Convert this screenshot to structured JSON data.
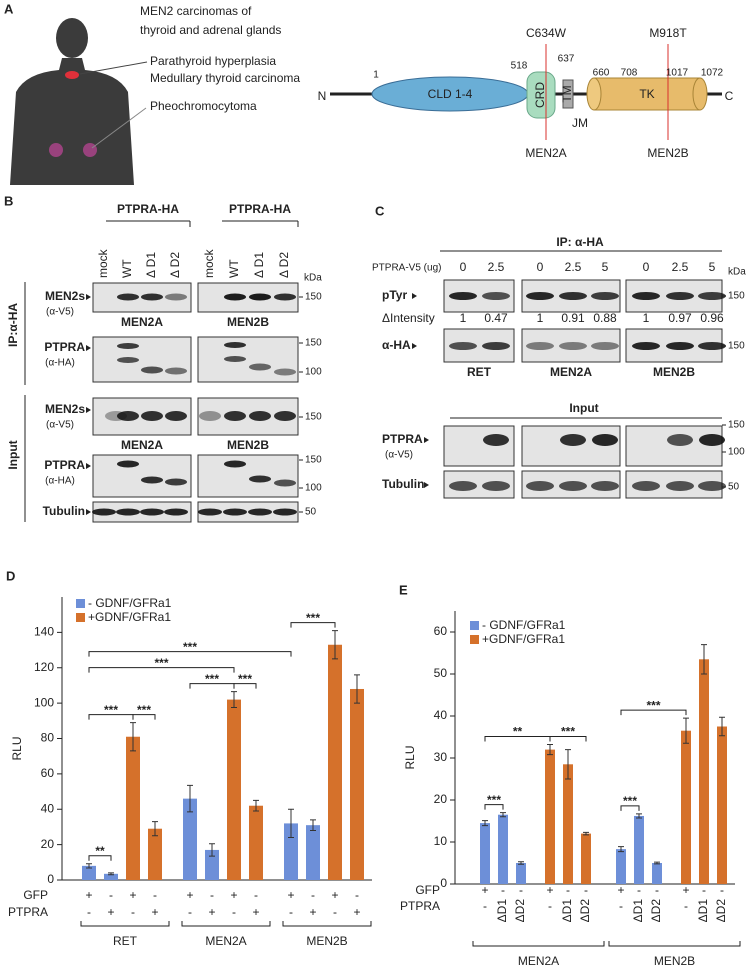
{
  "panel_a": {
    "letter": "A",
    "title": [
      "MEN2 carcinomas of",
      "thyroid and adrenal glands"
    ],
    "sites": [
      "Parathyroid hyperplasia",
      "Medullary thyroid carcinoma",
      "Pheochromocytoma"
    ],
    "protein": {
      "n_term": "N",
      "c_term": "C",
      "residues": [
        "1",
        "518",
        "637",
        "660",
        "708",
        "1017",
        "1072"
      ],
      "domains": [
        "CLD 1-4",
        "CRD",
        "TM",
        "JM",
        "TK"
      ],
      "mutations": [
        {
          "name": "C634W",
          "disease": "MEN2A"
        },
        {
          "name": "M918T",
          "disease": "MEN2B"
        }
      ]
    }
  },
  "panel_b": {
    "letter": "B",
    "construct": [
      "PTPRA-HA",
      "PTPRA-HA"
    ],
    "lanes": [
      "mock",
      "WT",
      "Δ D1",
      "Δ D2",
      "mock",
      "WT",
      "Δ D1",
      "Δ D2"
    ],
    "unit": "kDa",
    "sections": [
      "IP:α-HA",
      "Input"
    ],
    "rows": [
      {
        "name": "MEN2s",
        "antibody": "(α-V5)",
        "markers": [
          "150"
        ],
        "blots": [
          "MEN2A",
          "MEN2B"
        ]
      },
      {
        "name": "PTPRA",
        "antibody": "(α-HA)",
        "markers": [
          "150",
          "100"
        ]
      },
      {
        "name": "MEN2s",
        "antibody": "(α-V5)",
        "markers": [
          "150"
        ],
        "blots": [
          "MEN2A",
          "MEN2B"
        ]
      },
      {
        "name": "PTPRA",
        "antibody": "(α-HA)",
        "markers": [
          "150",
          "100"
        ]
      },
      {
        "name": "Tubulin",
        "markers": [
          "50"
        ]
      }
    ]
  },
  "panel_c": {
    "letter": "C",
    "section": "IP: α-HA",
    "dose_label": "PTPRA-V5 (ug)",
    "doses": [
      "0",
      "2.5",
      "0",
      "2.5",
      "5",
      "0",
      "2.5",
      "5"
    ],
    "unit": "kDa",
    "rows": [
      {
        "name": "pTyr",
        "markers": [
          "150"
        ]
      },
      {
        "name": "α-HA",
        "markers": [
          "150"
        ]
      }
    ],
    "intensity_label": "ΔIntensity",
    "intensities": [
      "1",
      "0.47",
      "1",
      "0.91",
      "0.88",
      "1",
      "0.97",
      "0.96"
    ],
    "blots": [
      "RET",
      "MEN2A",
      "MEN2B"
    ],
    "input_section": "Input",
    "input_rows": [
      {
        "name": "PTPRA",
        "antibody": "(α-V5)",
        "markers": [
          "150",
          "100"
        ]
      },
      {
        "name": "Tubulin",
        "markers": [
          "50"
        ]
      }
    ]
  },
  "chart_data": [
    {
      "type": "bar",
      "panel": "D",
      "y_label": "RLU",
      "ylim": [
        0,
        160
      ],
      "yticks": [
        0,
        20,
        40,
        60,
        80,
        100,
        120,
        140
      ],
      "groups": [
        "RET",
        "MEN2A",
        "MEN2B"
      ],
      "series": [
        {
          "name": "- GDNF/GFRa1",
          "color": "#6d8fd8",
          "values": [
            8,
            3.5,
            46,
            17,
            32,
            31
          ],
          "errors": [
            1.2,
            0.5,
            7.5,
            3.5,
            8,
            3
          ]
        },
        {
          "name": "+GDNF/GFRa1",
          "color": "#d5712b",
          "values": [
            81,
            29,
            102,
            42,
            133,
            108
          ],
          "errors": [
            8,
            4,
            4.5,
            3,
            8,
            8
          ]
        }
      ],
      "conditions": [
        {
          "name": "GFP",
          "labels": [
            "+",
            "-",
            "+",
            "-",
            "+",
            "-",
            "+",
            "-",
            "+",
            "-",
            "+",
            "-"
          ]
        },
        {
          "name": "PTPRA",
          "labels": [
            "-",
            "+",
            "-",
            "+",
            "-",
            "+",
            "-",
            "+",
            "-",
            "+",
            "-",
            "+"
          ]
        }
      ],
      "significance": [
        {
          "label": "**",
          "between": [
            0,
            1
          ]
        },
        {
          "label": "***",
          "between": [
            2,
            3
          ]
        },
        {
          "label": "***",
          "between": [
            0,
            2
          ]
        },
        {
          "label": "***",
          "between": [
            4,
            6
          ]
        },
        {
          "label": "***",
          "between": [
            6,
            7
          ]
        },
        {
          "label": "***",
          "between": [
            0,
            6
          ]
        },
        {
          "label": "***",
          "between": [
            0,
            8
          ]
        },
        {
          "label": "***",
          "between": [
            8,
            10
          ]
        }
      ]
    },
    {
      "type": "bar",
      "panel": "E",
      "y_label": "RLU",
      "ylim": [
        0,
        65
      ],
      "yticks": [
        0,
        10,
        20,
        30,
        40,
        50,
        60
      ],
      "groups": [
        "MEN2A",
        "MEN2B"
      ],
      "series": [
        {
          "name": "- GDNF/GFRa1",
          "color": "#6d8fd8",
          "values": [
            14.5,
            16.5,
            5,
            8.3,
            16.2,
            5
          ],
          "errors": [
            0.6,
            0.5,
            0.3,
            0.6,
            0.5,
            0.2
          ]
        },
        {
          "name": "+GDNF/GFRa1",
          "color": "#d5712b",
          "values": [
            32,
            28.5,
            12,
            36.5,
            53.5,
            37.5
          ],
          "errors": [
            1.2,
            3.5,
            0.3,
            3,
            3.5,
            2.2
          ]
        }
      ],
      "conditions": [
        {
          "name": "GFP",
          "labels": [
            "+",
            "-",
            "-",
            "+",
            "-",
            "-",
            "+",
            "-",
            "-",
            "+",
            "-",
            "-"
          ]
        },
        {
          "name": "PTPRA",
          "labels": [
            "-",
            "ΔD1",
            "ΔD2",
            "-",
            "ΔD1",
            "ΔD2",
            "-",
            "ΔD1",
            "ΔD2",
            "-",
            "ΔD1",
            "ΔD2"
          ]
        }
      ],
      "significance": [
        {
          "label": "***",
          "between": [
            0,
            1
          ]
        },
        {
          "label": "**",
          "between": [
            0,
            3
          ]
        },
        {
          "label": "***",
          "between": [
            3,
            5
          ]
        },
        {
          "label": "***",
          "between": [
            6,
            7
          ]
        },
        {
          "label": "***",
          "between": [
            6,
            9
          ]
        }
      ]
    }
  ]
}
